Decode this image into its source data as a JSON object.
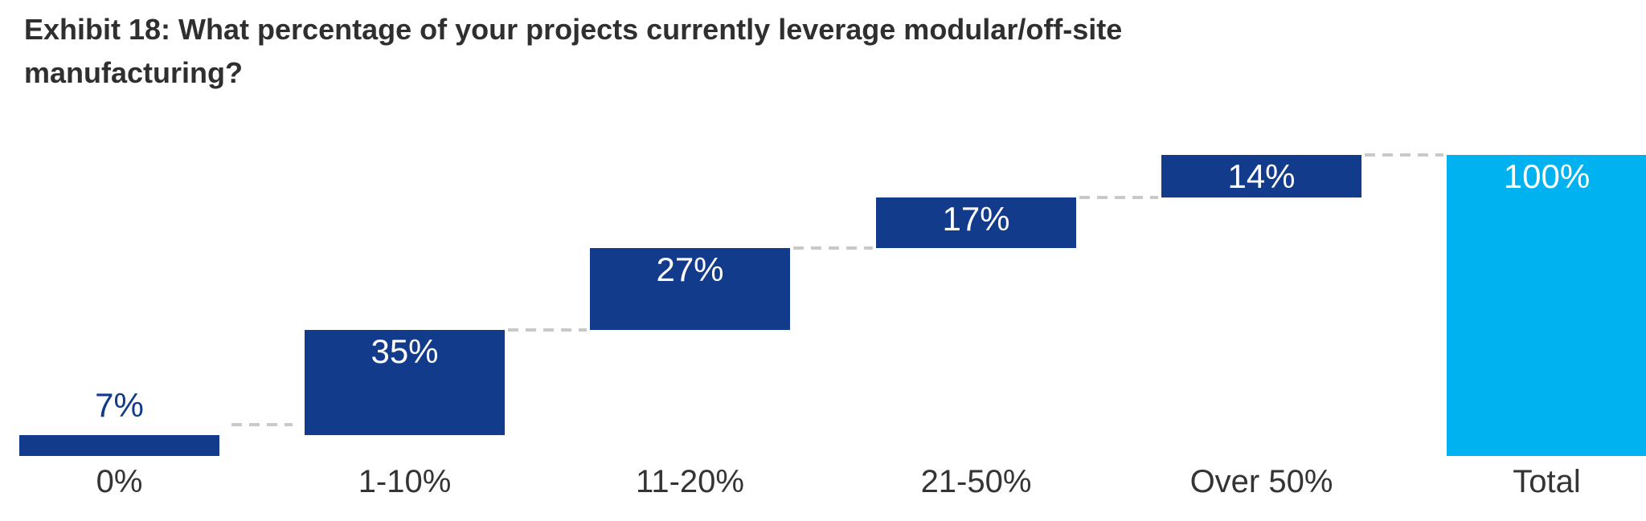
{
  "title": "Exhibit 18: What percentage of your projects currently leverage modular/off-site manufacturing?",
  "chart_data": {
    "type": "bar",
    "subtype": "waterfall",
    "title": "Exhibit 18: What percentage of your projects currently leverage modular/off-site manufacturing?",
    "categories": [
      "0%",
      "1-10%",
      "11-20%",
      "21-50%",
      "Over 50%",
      "Total"
    ],
    "values": [
      7,
      35,
      27,
      17,
      14,
      100
    ],
    "value_labels": [
      "7%",
      "35%",
      "27%",
      "17%",
      "14%",
      "100%"
    ],
    "is_total": [
      false,
      false,
      false,
      false,
      false,
      true
    ],
    "ylim": [
      0,
      100
    ],
    "grid": false,
    "legend": false,
    "xlabel": "",
    "ylabel": "",
    "colors": {
      "bar": "#133b8c",
      "total_bar": "#00b2f0",
      "label_inside": "#ffffff",
      "label_outside": "#133b8c",
      "connector": "#c9c9c9",
      "category_label": "#343434",
      "title": "#2f2f2f"
    }
  }
}
